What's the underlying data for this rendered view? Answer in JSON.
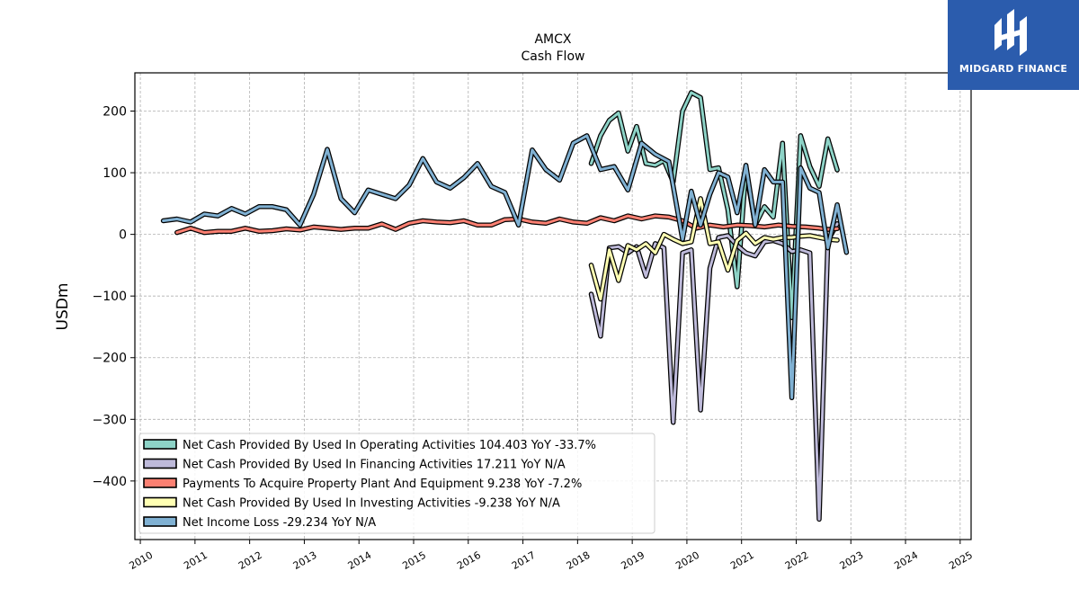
{
  "chart_data": {
    "type": "line",
    "title": "AMCX",
    "subtitle": "Cash Flow",
    "xlabel": "",
    "ylabel": "USDm",
    "xlim": [
      2009.9,
      2025.2
    ],
    "ylim": [
      -495,
      262
    ],
    "x_ticks": [
      2010,
      2011,
      2012,
      2013,
      2014,
      2015,
      2016,
      2017,
      2018,
      2019,
      2020,
      2021,
      2022,
      2023,
      2024,
      2025
    ],
    "y_ticks": [
      200,
      100,
      0,
      -100,
      -200,
      -300,
      -400
    ],
    "y_tick_labels": [
      "200",
      "100",
      "0",
      "−100",
      "−200",
      "−300",
      "−400"
    ],
    "grid": true,
    "legend_position": "bottom-left",
    "series": [
      {
        "name": "Net Cash Provided By Used In Operating Activities",
        "legend": "Net Cash Provided By Used In Operating Activities  104.403 YoY -33.7%",
        "color": "#8dd3c7",
        "points": [
          [
            2018.25,
            115
          ],
          [
            2018.42,
            160
          ],
          [
            2018.58,
            185
          ],
          [
            2018.75,
            197
          ],
          [
            2018.92,
            135
          ],
          [
            2019.08,
            175
          ],
          [
            2019.25,
            115
          ],
          [
            2019.42,
            112
          ],
          [
            2019.58,
            120
          ],
          [
            2019.75,
            85
          ],
          [
            2019.92,
            200
          ],
          [
            2020.08,
            230
          ],
          [
            2020.25,
            222
          ],
          [
            2020.42,
            105
          ],
          [
            2020.58,
            108
          ],
          [
            2020.75,
            40
          ],
          [
            2020.92,
            -85
          ],
          [
            2021.08,
            105
          ],
          [
            2021.25,
            15
          ],
          [
            2021.42,
            45
          ],
          [
            2021.58,
            28
          ],
          [
            2021.75,
            148
          ],
          [
            2021.92,
            -135
          ],
          [
            2022.08,
            160
          ],
          [
            2022.25,
            110
          ],
          [
            2022.42,
            78
          ],
          [
            2022.58,
            155
          ],
          [
            2022.75,
            104.403
          ]
        ]
      },
      {
        "name": "Net Cash Provided By Used In Financing Activities",
        "legend": "Net Cash Provided By Used In Financing Activities  17.211 YoY N/A",
        "color": "#bebada",
        "points": [
          [
            2018.25,
            -97
          ],
          [
            2018.42,
            -165
          ],
          [
            2018.58,
            -22
          ],
          [
            2018.75,
            -20
          ],
          [
            2018.92,
            -30
          ],
          [
            2019.08,
            -20
          ],
          [
            2019.25,
            -68
          ],
          [
            2019.42,
            -15
          ],
          [
            2019.58,
            -22
          ],
          [
            2019.75,
            -305
          ],
          [
            2019.92,
            -30
          ],
          [
            2020.08,
            -25
          ],
          [
            2020.25,
            -285
          ],
          [
            2020.42,
            -55
          ],
          [
            2020.58,
            -5
          ],
          [
            2020.75,
            -2
          ],
          [
            2020.92,
            -18
          ],
          [
            2021.08,
            -30
          ],
          [
            2021.25,
            -35
          ],
          [
            2021.42,
            -12
          ],
          [
            2021.58,
            -10
          ],
          [
            2021.75,
            -15
          ],
          [
            2021.92,
            -28
          ],
          [
            2022.08,
            -25
          ],
          [
            2022.25,
            -30
          ],
          [
            2022.42,
            -462
          ],
          [
            2022.58,
            -10
          ],
          [
            2022.75,
            17.211
          ]
        ]
      },
      {
        "name": "Payments To Acquire Property Plant And Equipment",
        "legend": "Payments To Acquire Property Plant And Equipment  9.238 YoY -7.2%",
        "color": "#fb8072",
        "points": [
          [
            2010.67,
            3
          ],
          [
            2010.92,
            10
          ],
          [
            2011.17,
            3
          ],
          [
            2011.42,
            5
          ],
          [
            2011.67,
            5
          ],
          [
            2011.92,
            10
          ],
          [
            2012.17,
            5
          ],
          [
            2012.42,
            6
          ],
          [
            2012.67,
            9
          ],
          [
            2012.92,
            7
          ],
          [
            2013.17,
            12
          ],
          [
            2013.42,
            10
          ],
          [
            2013.67,
            8
          ],
          [
            2013.92,
            10
          ],
          [
            2014.17,
            10
          ],
          [
            2014.42,
            17
          ],
          [
            2014.67,
            8
          ],
          [
            2014.92,
            18
          ],
          [
            2015.17,
            22
          ],
          [
            2015.42,
            20
          ],
          [
            2015.67,
            19
          ],
          [
            2015.92,
            22
          ],
          [
            2016.17,
            15
          ],
          [
            2016.42,
            15
          ],
          [
            2016.67,
            24
          ],
          [
            2016.92,
            25
          ],
          [
            2017.17,
            20
          ],
          [
            2017.42,
            18
          ],
          [
            2017.67,
            25
          ],
          [
            2017.92,
            20
          ],
          [
            2018.17,
            18
          ],
          [
            2018.42,
            27
          ],
          [
            2018.67,
            22
          ],
          [
            2018.92,
            30
          ],
          [
            2019.17,
            25
          ],
          [
            2019.42,
            30
          ],
          [
            2019.67,
            28
          ],
          [
            2019.92,
            22
          ],
          [
            2020.17,
            10
          ],
          [
            2020.42,
            15
          ],
          [
            2020.67,
            12
          ],
          [
            2020.92,
            15
          ],
          [
            2021.17,
            14
          ],
          [
            2021.42,
            12
          ],
          [
            2021.67,
            15
          ],
          [
            2021.92,
            13
          ],
          [
            2022.17,
            12
          ],
          [
            2022.42,
            10
          ],
          [
            2022.58,
            8
          ],
          [
            2022.75,
            9.238
          ]
        ]
      },
      {
        "name": "Net Cash Provided By Used In Investing Activities",
        "legend": "Net Cash Provided By Used In Investing Activities  -9.238 YoY N/A",
        "color": "#ffffb3",
        "points": [
          [
            2018.25,
            -50
          ],
          [
            2018.42,
            -105
          ],
          [
            2018.58,
            -25
          ],
          [
            2018.75,
            -75
          ],
          [
            2018.92,
            -18
          ],
          [
            2019.08,
            -25
          ],
          [
            2019.25,
            -15
          ],
          [
            2019.42,
            -30
          ],
          [
            2019.58,
            0
          ],
          [
            2019.75,
            -8
          ],
          [
            2019.92,
            -15
          ],
          [
            2020.08,
            -12
          ],
          [
            2020.25,
            58
          ],
          [
            2020.42,
            -15
          ],
          [
            2020.58,
            -12
          ],
          [
            2020.75,
            -58
          ],
          [
            2020.92,
            -10
          ],
          [
            2021.08,
            2
          ],
          [
            2021.25,
            -15
          ],
          [
            2021.42,
            -5
          ],
          [
            2021.58,
            -8
          ],
          [
            2021.75,
            -5
          ],
          [
            2021.92,
            -5
          ],
          [
            2022.08,
            -3
          ],
          [
            2022.25,
            -2
          ],
          [
            2022.42,
            -5
          ],
          [
            2022.58,
            -8
          ],
          [
            2022.75,
            -9.238
          ]
        ]
      },
      {
        "name": "Net Income Loss",
        "legend": "Net Income Loss  -29.234 YoY N/A",
        "color": "#80b1d3",
        "points": [
          [
            2010.42,
            22
          ],
          [
            2010.67,
            25
          ],
          [
            2010.92,
            20
          ],
          [
            2011.17,
            33
          ],
          [
            2011.42,
            30
          ],
          [
            2011.67,
            42
          ],
          [
            2011.92,
            33
          ],
          [
            2012.17,
            45
          ],
          [
            2012.42,
            45
          ],
          [
            2012.67,
            40
          ],
          [
            2012.92,
            15
          ],
          [
            2013.17,
            65
          ],
          [
            2013.42,
            138
          ],
          [
            2013.67,
            58
          ],
          [
            2013.92,
            35
          ],
          [
            2014.17,
            72
          ],
          [
            2014.42,
            65
          ],
          [
            2014.67,
            58
          ],
          [
            2014.92,
            80
          ],
          [
            2015.17,
            123
          ],
          [
            2015.42,
            85
          ],
          [
            2015.67,
            75
          ],
          [
            2015.92,
            92
          ],
          [
            2016.17,
            115
          ],
          [
            2016.42,
            78
          ],
          [
            2016.67,
            68
          ],
          [
            2016.92,
            15
          ],
          [
            2017.17,
            137
          ],
          [
            2017.42,
            105
          ],
          [
            2017.67,
            88
          ],
          [
            2017.92,
            148
          ],
          [
            2018.17,
            160
          ],
          [
            2018.42,
            105
          ],
          [
            2018.67,
            110
          ],
          [
            2018.92,
            72
          ],
          [
            2019.17,
            148
          ],
          [
            2019.42,
            130
          ],
          [
            2019.67,
            118
          ],
          [
            2019.92,
            -8
          ],
          [
            2020.08,
            70
          ],
          [
            2020.25,
            15
          ],
          [
            2020.42,
            65
          ],
          [
            2020.58,
            100
          ],
          [
            2020.75,
            93
          ],
          [
            2020.92,
            35
          ],
          [
            2021.08,
            112
          ],
          [
            2021.25,
            15
          ],
          [
            2021.42,
            105
          ],
          [
            2021.58,
            85
          ],
          [
            2021.75,
            85
          ],
          [
            2021.92,
            -265
          ],
          [
            2022.08,
            108
          ],
          [
            2022.25,
            75
          ],
          [
            2022.42,
            68
          ],
          [
            2022.58,
            -22
          ],
          [
            2022.75,
            48
          ],
          [
            2022.92,
            -29.234
          ]
        ]
      }
    ]
  },
  "logo": {
    "text": "MIDGARD FINANCE"
  }
}
